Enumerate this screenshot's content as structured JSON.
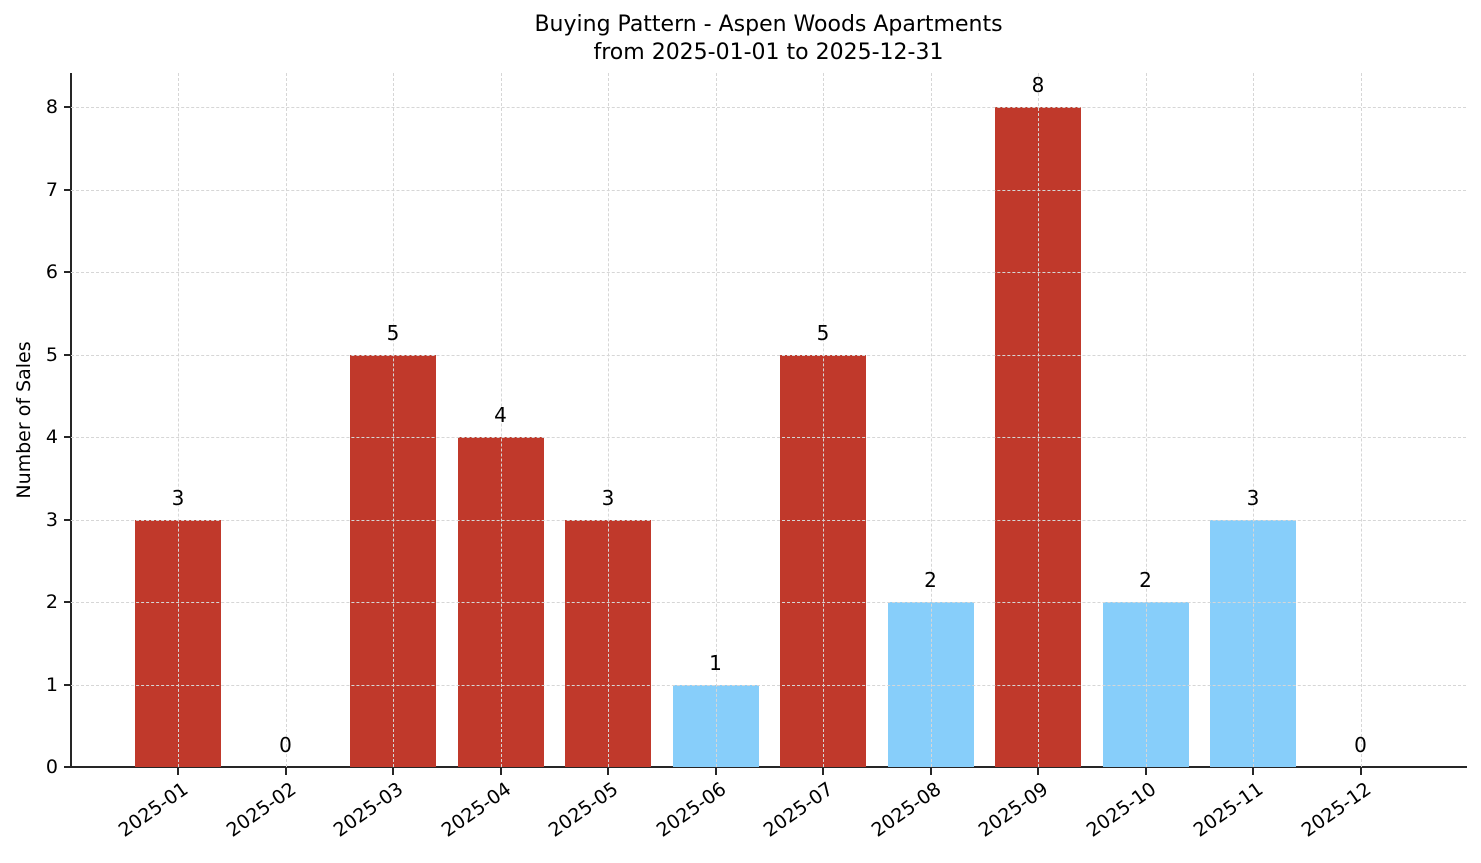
{
  "chart_data": {
    "type": "bar",
    "title": "Buying Pattern - Aspen Woods Apartments",
    "subtitle": "from 2025-01-01 to 2025-12-31",
    "xlabel": "",
    "ylabel": "Number of Sales",
    "categories": [
      "2025-01",
      "2025-02",
      "2025-03",
      "2025-04",
      "2025-05",
      "2025-06",
      "2025-07",
      "2025-08",
      "2025-09",
      "2025-10",
      "2025-11",
      "2025-12"
    ],
    "values": [
      3,
      0,
      5,
      4,
      3,
      1,
      5,
      2,
      8,
      2,
      3,
      0
    ],
    "bar_colors": [
      "#c0392b",
      "#c0392b",
      "#c0392b",
      "#c0392b",
      "#c0392b",
      "#87cefa",
      "#c0392b",
      "#87cefa",
      "#c0392b",
      "#87cefa",
      "#87cefa",
      "#c0392b"
    ],
    "data_labels": [
      "3",
      "0",
      "5",
      "4",
      "3",
      "1",
      "5",
      "2",
      "8",
      "2",
      "3",
      "0"
    ],
    "yticks": [
      "0",
      "1",
      "2",
      "3",
      "4",
      "5",
      "6",
      "7",
      "8"
    ],
    "ylim": [
      0,
      8.4
    ],
    "grid": true,
    "legend": null
  },
  "colors": {
    "high": "#c0392b",
    "low": "#87cefa",
    "grid": "#d6d6d6",
    "axis": "#262626"
  }
}
